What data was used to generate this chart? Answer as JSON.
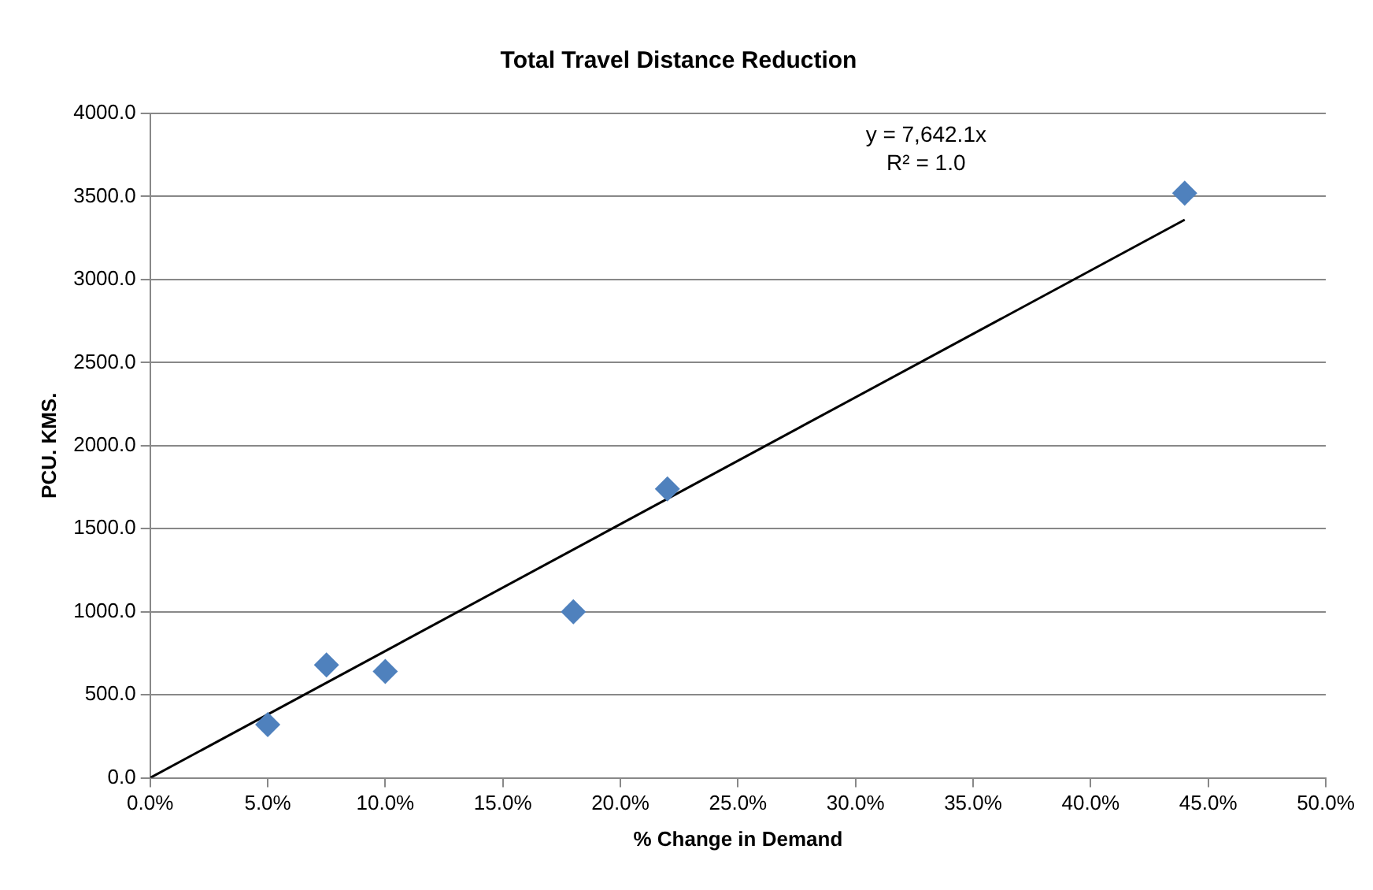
{
  "chart_data": {
    "type": "scatter",
    "title": "Total Travel Distance Reduction",
    "xlabel": "% Change in Demand",
    "ylabel": "PCU. KMS.",
    "annotations": [
      "y = 7,642.1x",
      "R² = 1.0"
    ],
    "x": [
      0.05,
      0.075,
      0.1,
      0.18,
      0.22,
      0.44
    ],
    "series": [
      {
        "color": "#4f81bd",
        "values": [
          320,
          680,
          640,
          1000,
          1740,
          3520
        ],
        "marker": "diamond"
      },
      {
        "type": "line",
        "color": "#000000",
        "x": [
          0,
          0.44
        ],
        "values": [
          0,
          3360
        ],
        "marker": "none"
      }
    ],
    "xlim": [
      0,
      0.5
    ],
    "xticks": [
      {
        "value": 0,
        "label": "0.0%"
      },
      {
        "value": 0.05,
        "label": "5.0%"
      },
      {
        "value": 0.1,
        "label": "10.0%"
      },
      {
        "value": 0.15,
        "label": "15.0%"
      },
      {
        "value": 0.2,
        "label": "20.0%"
      },
      {
        "value": 0.25,
        "label": "25.0%"
      },
      {
        "value": 0.3,
        "label": "30.0%"
      },
      {
        "value": 0.35,
        "label": "35.0%"
      },
      {
        "value": 0.4,
        "label": "40.0%"
      },
      {
        "value": 0.45,
        "label": "45.0%"
      },
      {
        "value": 0.5,
        "label": "50.0%"
      }
    ],
    "ylim": [
      0,
      4000
    ],
    "yticks": [
      {
        "value": 0,
        "label": "0.0"
      },
      {
        "value": 500,
        "label": "500.0"
      },
      {
        "value": 1000,
        "label": "1000.0"
      },
      {
        "value": 1500,
        "label": "1500.0"
      },
      {
        "value": 2000,
        "label": "2000.0"
      },
      {
        "value": 2500,
        "label": "2500.0"
      },
      {
        "value": 3000,
        "label": "3000.0"
      },
      {
        "value": 3500,
        "label": "3500.0"
      },
      {
        "value": 4000,
        "label": "4000.0"
      }
    ],
    "grid": "y",
    "legend": false
  }
}
